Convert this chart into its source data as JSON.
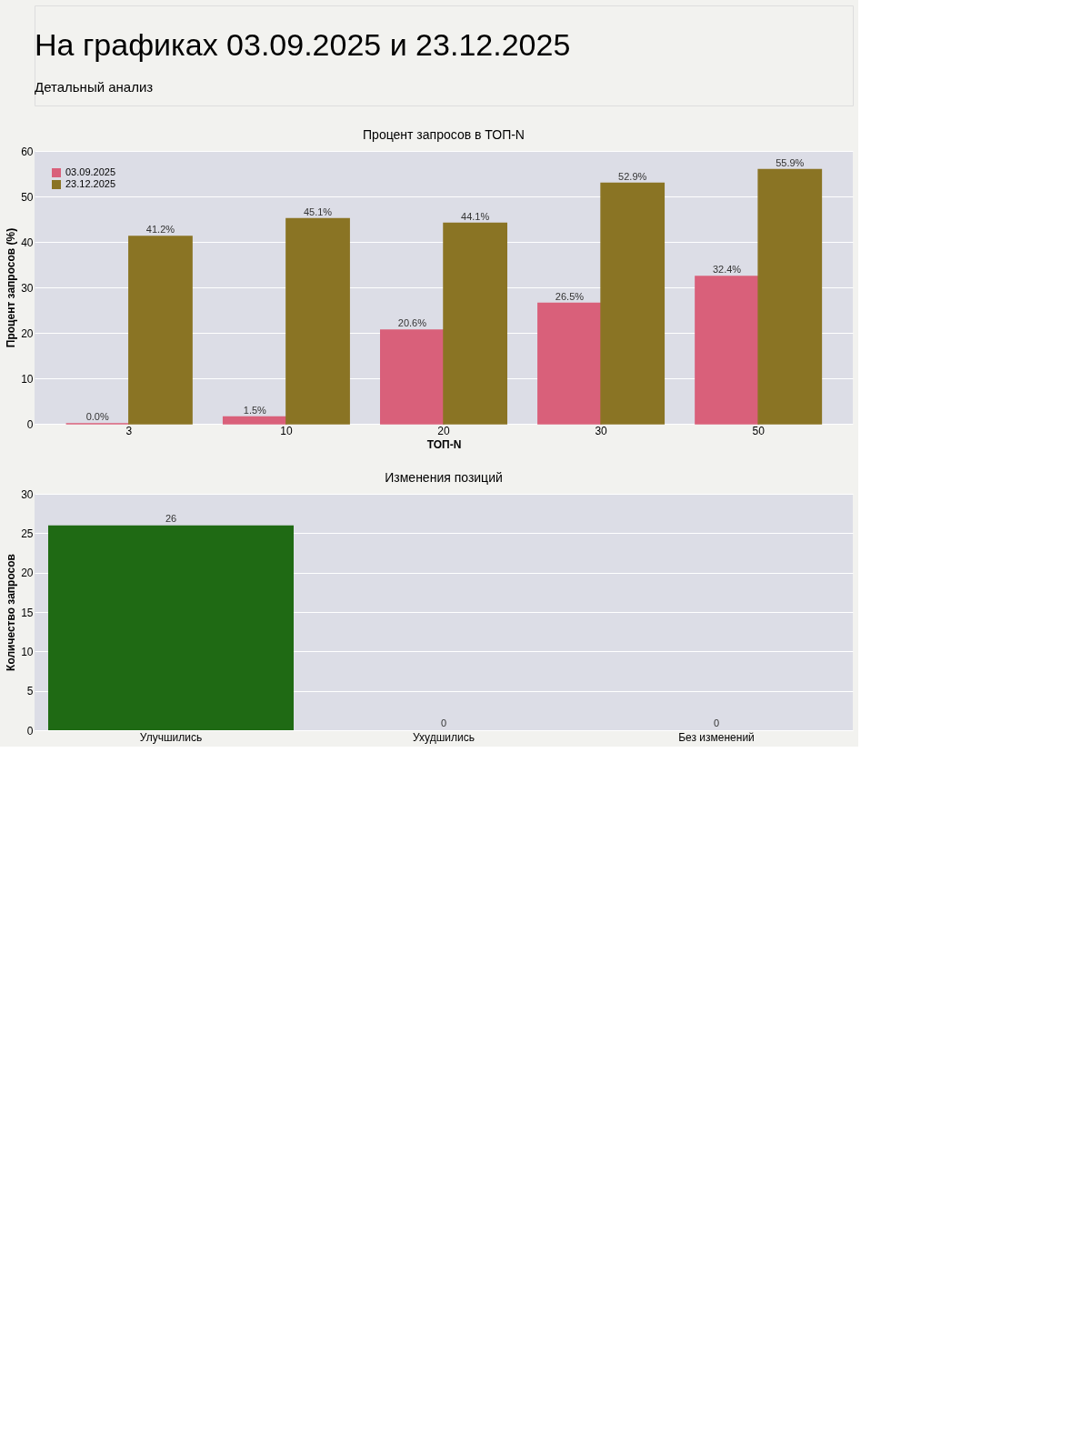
{
  "chart_data": [
    {
      "type": "bar",
      "title": "Процент запросов в ТОП-N",
      "xlabel": "ТОП-N",
      "ylabel": "Процент запросов (%)",
      "annotations": [
        "На графиках 03.09.2025 и 23.12.2025",
        "Детальный анализ"
      ],
      "categories": [
        "3",
        "10",
        "20",
        "30",
        "50"
      ],
      "series": [
        {
          "name": "03.09.2025",
          "color": "#d9607a",
          "values": [
            0.0,
            1.5,
            20.6,
            26.5,
            32.4
          ],
          "value_labels": [
            "0.0%",
            "1.5%",
            "20.6%",
            "26.5%",
            "32.4%"
          ]
        },
        {
          "name": "23.12.2025",
          "color": "#8a7424",
          "values": [
            41.2,
            45.1,
            44.1,
            52.9,
            55.9
          ],
          "value_labels": [
            "41.2%",
            "45.1%",
            "44.1%",
            "52.9%",
            "55.9%"
          ]
        }
      ],
      "ylim": [
        0,
        60
      ],
      "yticks": [
        0,
        10,
        20,
        30,
        40,
        50,
        60
      ],
      "grid": "y",
      "legend": "top left"
    },
    {
      "type": "bar",
      "title": "Изменения позиций",
      "ylabel": "Количество запросов",
      "categories": [
        "Улучшились",
        "Ухудшились",
        "Без изменений"
      ],
      "values": [
        26,
        0,
        0
      ],
      "colors": [
        "#1f6a14",
        "#c0392b",
        "#7f8c8d"
      ],
      "data_labels": true,
      "ylim": [
        0,
        30
      ],
      "yticks": [
        0,
        5,
        10,
        15,
        20,
        25,
        30
      ],
      "grid": "y"
    }
  ]
}
